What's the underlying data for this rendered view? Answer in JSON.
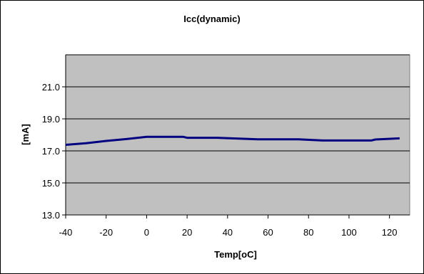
{
  "chart_data": {
    "type": "line",
    "title": "Icc(dynamic)",
    "xlabel": "Temp[oC]",
    "ylabel": "[mA]",
    "xlim": [
      -40,
      130
    ],
    "ylim": [
      13.0,
      23.0
    ],
    "x_ticks": [
      -40,
      -20,
      0,
      20,
      40,
      60,
      80,
      100,
      120
    ],
    "y_ticks": [
      "13.0",
      "15.0",
      "17.0",
      "19.0",
      "21.0"
    ],
    "y_gridlines": [
      15.0,
      17.0,
      19.0,
      21.0,
      23.0
    ],
    "grid": true,
    "legend": "none",
    "colors": {
      "series": "#000080",
      "plot_bg": "#c0c0c0",
      "chart_bg": "#ffffff"
    },
    "series": [
      {
        "x": [
          -40,
          -30,
          -20,
          -10,
          0,
          18,
          20,
          35,
          55,
          75,
          87,
          111,
          113,
          125
        ],
        "y": [
          17.38,
          17.48,
          17.62,
          17.74,
          17.88,
          17.88,
          17.82,
          17.82,
          17.72,
          17.72,
          17.65,
          17.65,
          17.71,
          17.78
        ]
      }
    ]
  }
}
